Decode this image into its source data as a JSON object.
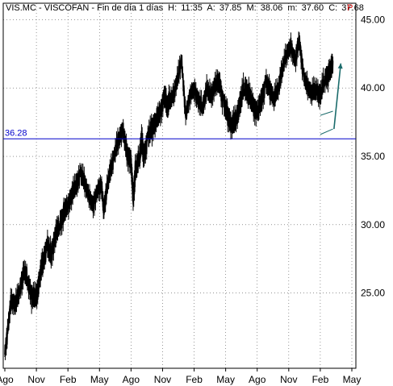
{
  "header": {
    "symbol": "VIS.MC",
    "name": "VISCOFAN",
    "timeframe": "Fin de día 1 días",
    "high_label": "H:",
    "high": "11:35",
    "ask_label": "A:",
    "ask": "37.85",
    "mid_label": "M:",
    "mid": "38.06",
    "min_label": "m:",
    "min": "37.60",
    "close_label": "C:",
    "close": "37.68",
    "flag": "P"
  },
  "chart_data": {
    "type": "line",
    "title": "VIS.MC - VISCOFAN - Fin de día 1 días",
    "y_ticks": [
      "45.00",
      "40.00",
      "35.00",
      "30.00",
      "25.00"
    ],
    "y_tick_values": [
      45,
      40,
      35,
      30,
      25
    ],
    "ylim": [
      19.5,
      46.2
    ],
    "x_ticks": [
      "Ago",
      "Nov",
      "Feb",
      "May",
      "Ago",
      "Nov",
      "Feb",
      "May",
      "Ago",
      "Nov",
      "Feb",
      "May"
    ],
    "x_tick_index": [
      0,
      3,
      6,
      9,
      12,
      15,
      18,
      21,
      24,
      27,
      30,
      33
    ],
    "x_range": [
      0,
      33
    ],
    "grid": true,
    "series": [
      {
        "x": [
          0,
          0.3,
          0.6,
          1.0,
          1.4,
          1.8,
          2.2,
          2.6,
          3.0,
          3.3,
          3.6,
          4.0,
          4.4,
          4.8,
          5.2,
          5.6,
          6.0,
          6.4,
          6.8,
          7.2,
          7.6,
          8.0,
          8.4,
          8.8,
          9.2,
          9.4,
          9.6,
          10.0,
          10.4,
          10.8,
          11.2,
          11.6,
          12.0,
          12.2,
          12.4,
          12.8,
          13.0,
          13.2,
          13.6,
          14.0,
          14.4,
          14.8,
          15.2,
          15.4,
          15.6,
          16.0,
          16.4,
          16.8,
          17.2,
          17.6,
          18.0,
          18.4,
          18.8,
          19.2,
          19.6,
          20.0,
          20.4,
          20.8,
          21.2,
          21.6,
          22.0,
          22.4,
          22.8,
          23.2,
          23.6,
          24.0,
          24.4,
          24.8,
          25.2,
          25.6,
          26.0,
          26.4,
          26.8,
          27.2,
          27.6,
          28.0,
          28.4,
          28.8,
          29.2,
          29.6,
          30.0,
          30.4,
          30.8,
          31.2
        ],
        "values": [
          20.5,
          22.5,
          24.5,
          24.0,
          25.2,
          26.8,
          25.8,
          24.5,
          25.0,
          26.0,
          27.0,
          28.5,
          28.0,
          29.0,
          30.0,
          31.0,
          31.5,
          32.0,
          33.0,
          33.8,
          33.0,
          32.0,
          31.5,
          32.5,
          33.0,
          31.0,
          32.0,
          34.0,
          35.0,
          36.0,
          37.0,
          35.5,
          34.5,
          31.8,
          34.0,
          35.0,
          36.0,
          35.0,
          36.5,
          37.0,
          37.5,
          38.5,
          39.5,
          38.5,
          39.0,
          39.5,
          40.5,
          42.0,
          38.0,
          39.5,
          40.0,
          39.0,
          38.5,
          40.0,
          39.5,
          40.0,
          40.5,
          39.0,
          38.0,
          37.0,
          38.0,
          39.0,
          40.0,
          39.5,
          39.0,
          38.0,
          39.0,
          40.5,
          40.0,
          39.0,
          40.0,
          41.5,
          42.5,
          43.0,
          42.0,
          43.5,
          41.0,
          40.0,
          39.5,
          40.0,
          39.5,
          40.5,
          41.0,
          42.0
        ]
      }
    ],
    "hline": {
      "value": 36.28,
      "label": "36.28",
      "color": "#0000cc"
    },
    "arrow": {
      "color": "#1a6b6b"
    }
  }
}
